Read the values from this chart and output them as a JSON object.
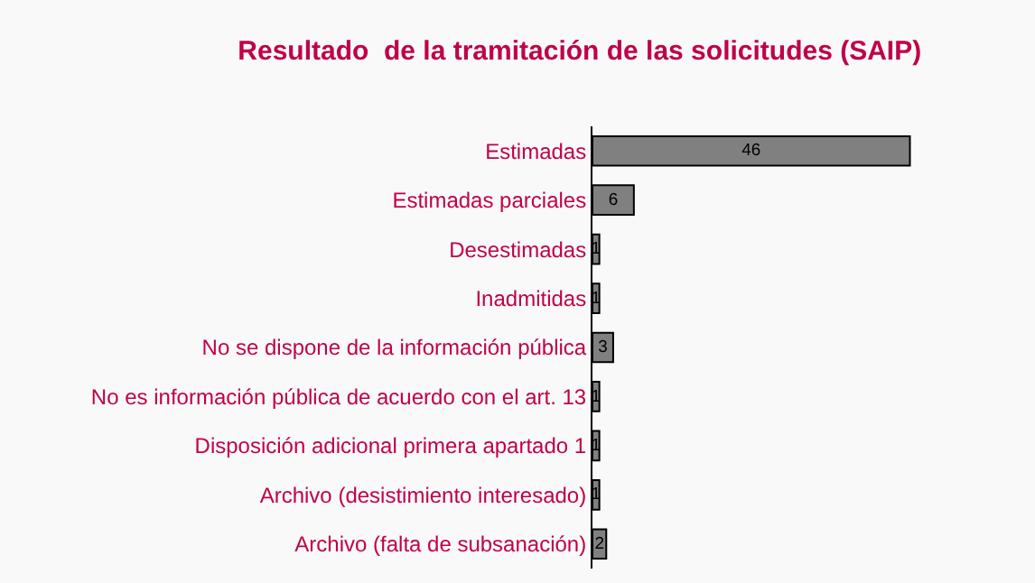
{
  "chart_data": {
    "type": "bar",
    "orientation": "horizontal",
    "title": "Resultado  de la tramitación de las solicitudes (SAIP)",
    "categories": [
      "Estimadas",
      "Estimadas parciales",
      "Desestimadas",
      "Inadmitidas",
      "No se dispone de la información pública",
      "No es información pública de acuerdo con el art. 13",
      "Disposición adicional primera apartado 1",
      "Archivo (desistimiento interesado)",
      "Archivo (falta de subsanación)"
    ],
    "values": [
      46,
      6,
      1,
      1,
      3,
      1,
      1,
      1,
      2
    ],
    "color": "#808080",
    "data_labels": true,
    "tick_labels": "y",
    "grid": false,
    "legend": false
  }
}
